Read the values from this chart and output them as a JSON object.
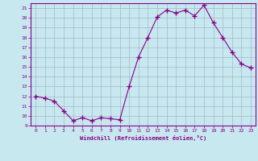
{
  "hours": [
    0,
    1,
    2,
    3,
    4,
    5,
    6,
    7,
    8,
    9,
    10,
    11,
    12,
    13,
    14,
    15,
    16,
    17,
    18,
    19,
    20,
    21,
    22,
    23
  ],
  "windchill": [
    12.0,
    11.8,
    11.5,
    10.5,
    9.5,
    9.8,
    9.5,
    9.8,
    9.7,
    9.6,
    13.0,
    16.0,
    18.0,
    20.1,
    20.8,
    20.5,
    20.8,
    20.2,
    21.3,
    19.5,
    18.0,
    16.5,
    15.3,
    14.9
  ],
  "line_color": "#880088",
  "marker": "+",
  "marker_size": 4,
  "bg_color": "#c8e8f0",
  "grid_color": "#a0b8c8",
  "text_color": "#880088",
  "xlabel": "Windchill (Refroidissement éolien,°C)",
  "ylim": [
    9,
    21.5
  ],
  "xlim": [
    -0.5,
    23.5
  ],
  "yticks": [
    9,
    10,
    11,
    12,
    13,
    14,
    15,
    16,
    17,
    18,
    19,
    20,
    21
  ],
  "xticks": [
    0,
    1,
    2,
    3,
    4,
    5,
    6,
    7,
    8,
    9,
    10,
    11,
    12,
    13,
    14,
    15,
    16,
    17,
    18,
    19,
    20,
    21,
    22,
    23
  ]
}
